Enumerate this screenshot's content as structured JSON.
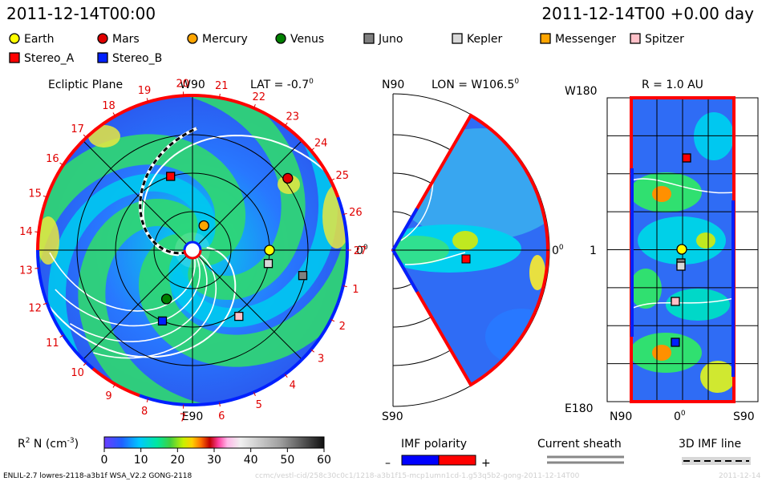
{
  "header": {
    "date_left": "2011-12-14T00:00",
    "date_right": "2011-12-14T00 +0.00 day"
  },
  "colors": {
    "earth": "#ffff00",
    "mars": "#e00000",
    "mercury": "#ffa500",
    "venus": "#008000",
    "juno": "#808080",
    "kepler": "#d8d8d8",
    "messenger": "#ffa500",
    "spitzer": "#ffc0c8",
    "stereo_a": "#ff0000",
    "stereo_b": "#0020ff",
    "imf_neg": "#0000ff",
    "imf_pos": "#ff0000"
  },
  "legend": {
    "bodies": [
      {
        "name": "Earth",
        "shape": "circle",
        "color": "#ffff00"
      },
      {
        "name": "Mars",
        "shape": "circle",
        "color": "#e00000"
      },
      {
        "name": "Mercury",
        "shape": "circle",
        "color": "#ffa500"
      },
      {
        "name": "Venus",
        "shape": "circle",
        "color": "#008000"
      },
      {
        "name": "Juno",
        "shape": "square",
        "color": "#808080"
      },
      {
        "name": "Kepler",
        "shape": "square",
        "color": "#d8d8d8"
      },
      {
        "name": "Messenger",
        "shape": "square",
        "color": "#ffa500"
      },
      {
        "name": "Spitzer",
        "shape": "square",
        "color": "#ffc0c8"
      },
      {
        "name": "Stereo_A",
        "shape": "square",
        "color": "#ff0000"
      },
      {
        "name": "Stereo_B",
        "shape": "square",
        "color": "#0020ff"
      }
    ]
  },
  "chart_data": [
    {
      "type": "heatmap",
      "panel": "ecliptic",
      "title": "Ecliptic Plane",
      "lat_label": "LAT = -0.7",
      "deg_symbol": "0",
      "top_label": "W90",
      "bottom_label": "E90",
      "right_label": "0",
      "carrington_labels": [
        "1",
        "2",
        "3",
        "4",
        "5",
        "6",
        "7",
        "8",
        "9",
        "10",
        "11",
        "12",
        "13",
        "14",
        "15",
        "16",
        "17",
        "18",
        "19",
        "20",
        "21",
        "22",
        "23",
        "24",
        "25",
        "26",
        "27"
      ],
      "body_positions": [
        {
          "name": "Earth",
          "r_au": 1.0,
          "lon_deg": 0
        },
        {
          "name": "Mars",
          "r_au": 1.55,
          "lon_deg": 37
        },
        {
          "name": "Mercury",
          "r_au": 0.35,
          "lon_deg": 65
        },
        {
          "name": "Venus",
          "r_au": 0.72,
          "lon_deg": 242
        },
        {
          "name": "Juno",
          "r_au": 1.47,
          "lon_deg": -13
        },
        {
          "name": "Kepler",
          "r_au": 1.0,
          "lon_deg": -10
        },
        {
          "name": "Spitzer",
          "r_au": 1.05,
          "lon_deg": -55
        },
        {
          "name": "Stereo_A",
          "r_au": 1.0,
          "lon_deg": 106.5
        },
        {
          "name": "Stereo_B",
          "r_au": 1.0,
          "lon_deg": 247
        }
      ]
    },
    {
      "type": "heatmap",
      "panel": "meridional",
      "top_left_label": "N90",
      "lon_label": "LON = W106.5",
      "deg_symbol": "0",
      "right_label": "0",
      "bottom_label": "S90"
    },
    {
      "type": "heatmap",
      "panel": "sphere",
      "r_label": "R = 1.0 AU",
      "y_top_label": "W180",
      "y_mid_label": "1",
      "y_bottom_label": "E180",
      "x_labels": [
        "N90",
        "0",
        "S90"
      ],
      "deg_symbol": "0"
    },
    {
      "type": "colorbar",
      "label": "R",
      "label_sup": "2",
      "label_mid": " N (cm",
      "label_sup2": "-3",
      "label_end": ")",
      "ticks": [
        0,
        10,
        20,
        30,
        40,
        50,
        60
      ],
      "tick_labels": [
        "0",
        "10",
        "20",
        "30",
        "40",
        "50",
        "60"
      ],
      "range": [
        0,
        60
      ]
    }
  ],
  "keys": {
    "imf_title": "IMF polarity",
    "imf_minus": "–",
    "imf_plus": "+",
    "sheath_title": "Current sheath",
    "imf3d_title": "3D IMF line"
  },
  "footer": {
    "model": "ENLIL-2.7 lowres-2118-a3b1f WSA_V2.2 GONG-2118",
    "run_id": "ccmc/vestl-cid/258c30c0c1/1218-a3b1f15-mcp1umn1cd-1.g53q5b2-gong-2011-12-14T00",
    "date_stub": "2011-12-14"
  }
}
